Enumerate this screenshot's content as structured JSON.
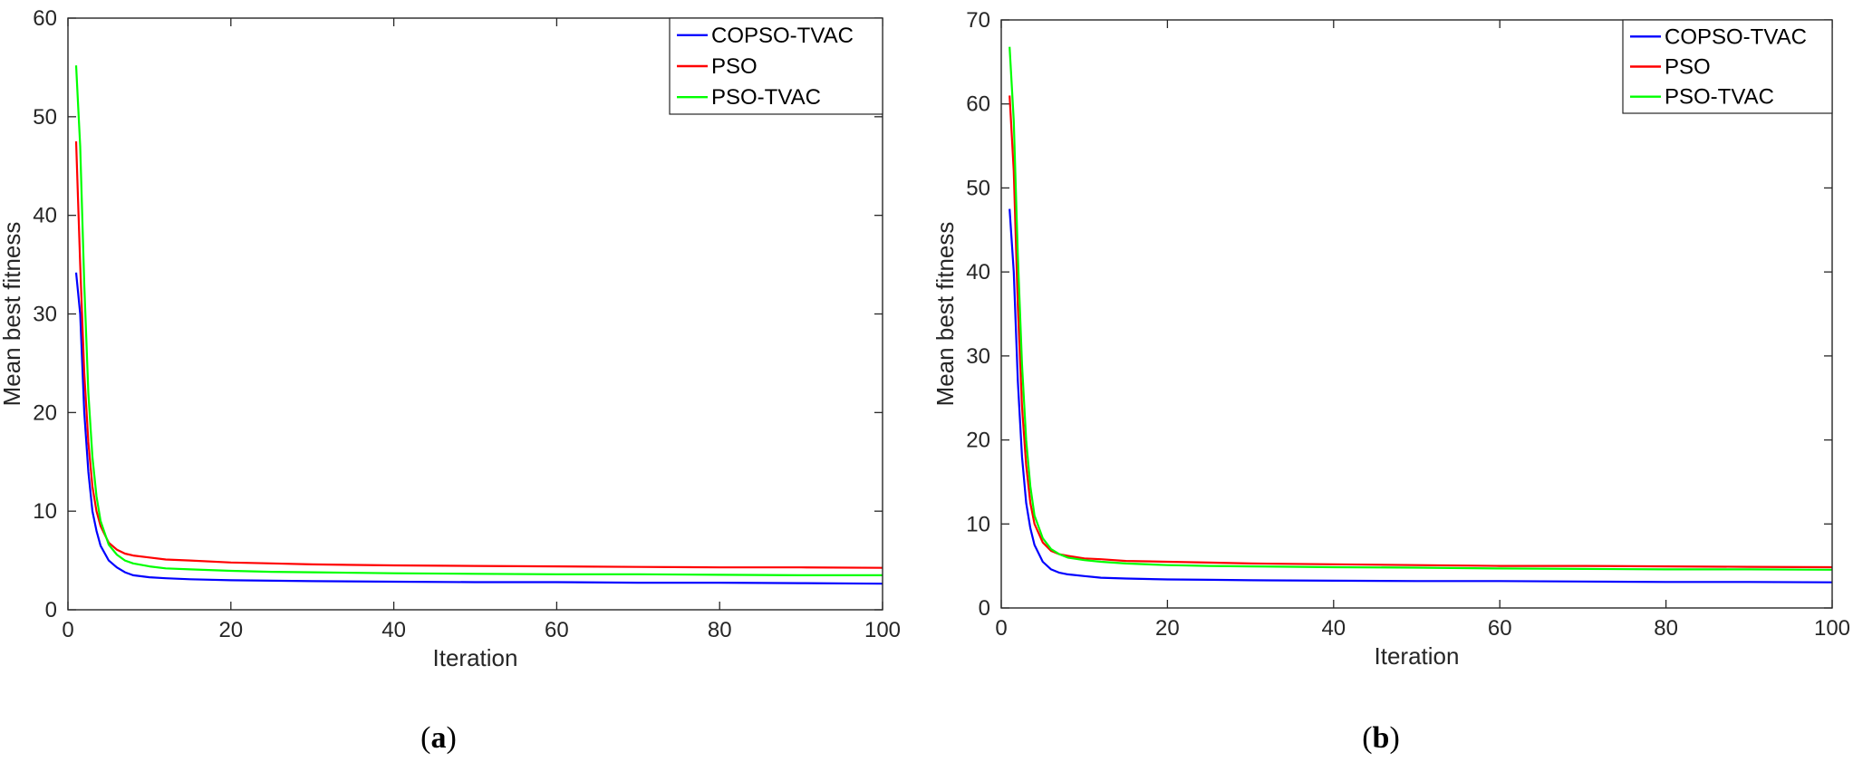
{
  "chart_data": [
    {
      "type": "line",
      "panel_label": "a",
      "xlabel": "Iteration",
      "ylabel": "Mean best fitness",
      "xlim": [
        0,
        100
      ],
      "ylim": [
        0,
        60
      ],
      "xticks": [
        0,
        20,
        40,
        60,
        80,
        100
      ],
      "yticks": [
        0,
        10,
        20,
        30,
        40,
        50,
        60
      ],
      "grid": false,
      "legend": "top-right",
      "x": [
        1,
        1.5,
        2,
        2.5,
        3,
        3.5,
        4,
        5,
        6,
        7,
        8,
        10,
        12,
        15,
        20,
        25,
        30,
        40,
        50,
        60,
        70,
        80,
        90,
        100
      ],
      "series": [
        {
          "name": "COPSO-TVAC",
          "color": "#0000ff",
          "values": [
            34.2,
            30.0,
            20.0,
            14.0,
            10.0,
            8.0,
            6.5,
            5.0,
            4.3,
            3.8,
            3.5,
            3.3,
            3.2,
            3.1,
            3.0,
            2.95,
            2.9,
            2.85,
            2.8,
            2.8,
            2.75,
            2.75,
            2.7,
            2.65
          ]
        },
        {
          "name": "PSO",
          "color": "#ff0000",
          "values": [
            47.5,
            35.0,
            24.0,
            17.0,
            12.5,
            10.0,
            8.5,
            6.8,
            6.1,
            5.7,
            5.5,
            5.3,
            5.1,
            5.0,
            4.8,
            4.7,
            4.6,
            4.5,
            4.45,
            4.4,
            4.35,
            4.3,
            4.3,
            4.25
          ]
        },
        {
          "name": "PSO-TVAC",
          "color": "#00ff00",
          "values": [
            55.2,
            47.0,
            33.0,
            22.0,
            15.5,
            11.5,
            9.0,
            6.6,
            5.6,
            5.0,
            4.7,
            4.4,
            4.2,
            4.1,
            3.95,
            3.85,
            3.8,
            3.7,
            3.65,
            3.6,
            3.6,
            3.55,
            3.5,
            3.5
          ]
        }
      ]
    },
    {
      "type": "line",
      "panel_label": "b",
      "xlabel": "Iteration",
      "ylabel": "Mean best fitness",
      "xlim": [
        0,
        100
      ],
      "ylim": [
        0,
        70
      ],
      "xticks": [
        0,
        20,
        40,
        60,
        80,
        100
      ],
      "yticks": [
        0,
        10,
        20,
        30,
        40,
        50,
        60,
        70
      ],
      "grid": false,
      "legend": "top-right",
      "x": [
        1,
        1.5,
        2,
        2.5,
        3,
        3.5,
        4,
        5,
        6,
        7,
        8,
        10,
        12,
        15,
        20,
        25,
        30,
        40,
        50,
        60,
        70,
        80,
        90,
        100
      ],
      "series": [
        {
          "name": "COPSO-TVAC",
          "color": "#0000ff",
          "values": [
            47.5,
            40.0,
            27.0,
            18.0,
            12.5,
            9.5,
            7.5,
            5.5,
            4.6,
            4.2,
            4.0,
            3.8,
            3.6,
            3.5,
            3.4,
            3.35,
            3.3,
            3.25,
            3.2,
            3.2,
            3.15,
            3.1,
            3.1,
            3.05
          ]
        },
        {
          "name": "PSO",
          "color": "#ff0000",
          "values": [
            61.0,
            52.0,
            36.0,
            24.0,
            17.0,
            12.5,
            10.0,
            7.8,
            6.8,
            6.4,
            6.2,
            5.9,
            5.8,
            5.6,
            5.5,
            5.4,
            5.3,
            5.2,
            5.1,
            5.0,
            5.0,
            4.95,
            4.9,
            4.85
          ]
        },
        {
          "name": "PSO-TVAC",
          "color": "#00ff00",
          "values": [
            66.8,
            58.0,
            42.0,
            29.0,
            20.0,
            14.5,
            11.0,
            8.3,
            7.0,
            6.4,
            6.0,
            5.7,
            5.5,
            5.3,
            5.1,
            5.0,
            4.95,
            4.85,
            4.8,
            4.7,
            4.65,
            4.6,
            4.6,
            4.55
          ]
        }
      ]
    }
  ]
}
